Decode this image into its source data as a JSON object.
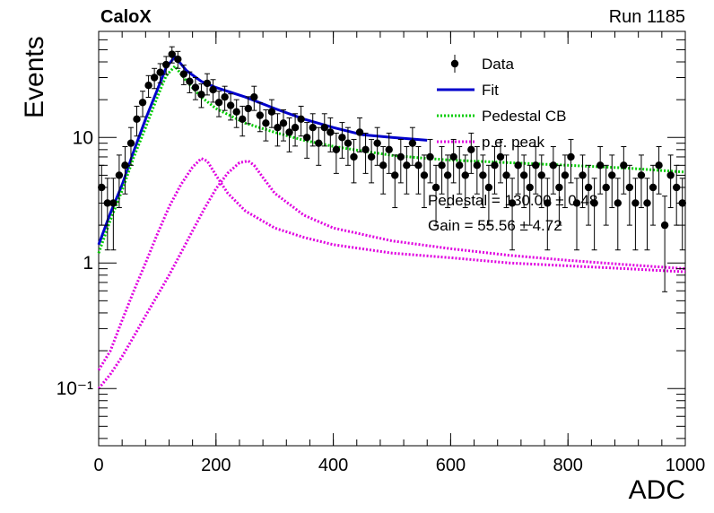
{
  "header": {
    "left_label": "CaloX",
    "right_label": "Run 1185"
  },
  "fit_text": {
    "pedestal": "Pedestal = 130.00 ± 0.48",
    "gain": "Gain = 55.56 ± 4.72"
  },
  "colors": {
    "data": "#000000",
    "fit": "#0000cc",
    "pedestal_cb": "#00cc00",
    "pe_peak": "#e000e0"
  },
  "chart_data": {
    "type": "scatter",
    "title": "",
    "xlabel": "ADC",
    "ylabel": "Events",
    "xlim": [
      0,
      1000
    ],
    "ylim": [
      0.035,
      70
    ],
    "yscale": "log",
    "x_ticks": [
      "0",
      "200",
      "400",
      "600",
      "800",
      "1000"
    ],
    "y_ticks": [
      {
        "value": 0.1,
        "label": "10⁻¹"
      },
      {
        "value": 1,
        "label": "1"
      },
      {
        "value": 10,
        "label": "10"
      }
    ],
    "legend": {
      "position": "top-right",
      "entries": [
        "Data",
        "Fit",
        "Pedestal CB",
        "p.e. peak"
      ]
    },
    "series": [
      {
        "name": "Data",
        "style": "points-with-errors",
        "x": [
          5,
          15,
          25,
          35,
          45,
          55,
          65,
          75,
          85,
          95,
          105,
          115,
          125,
          135,
          145,
          155,
          165,
          175,
          185,
          195,
          205,
          215,
          225,
          235,
          245,
          255,
          265,
          275,
          285,
          295,
          305,
          315,
          325,
          335,
          345,
          355,
          365,
          375,
          385,
          395,
          405,
          415,
          425,
          435,
          445,
          455,
          465,
          475,
          485,
          495,
          505,
          515,
          525,
          535,
          545,
          555,
          565,
          575,
          585,
          595,
          605,
          615,
          625,
          635,
          645,
          655,
          665,
          675,
          685,
          695,
          705,
          715,
          725,
          735,
          745,
          755,
          765,
          775,
          785,
          795,
          805,
          815,
          825,
          835,
          845,
          855,
          865,
          875,
          885,
          895,
          905,
          915,
          925,
          935,
          945,
          955,
          965,
          975,
          985,
          995
        ],
        "y": [
          4,
          3,
          3,
          5,
          6,
          9,
          14,
          19,
          26,
          30,
          33,
          38,
          46,
          42,
          32,
          28,
          25,
          22,
          27,
          24,
          19,
          21,
          18,
          16,
          14,
          17,
          21,
          15,
          13,
          16,
          12,
          13,
          11,
          12,
          14,
          10,
          12,
          9,
          12,
          11,
          8,
          10,
          9,
          7,
          11,
          8,
          7,
          9,
          6,
          8,
          5,
          7,
          6,
          9,
          6,
          5,
          7,
          4,
          6,
          5,
          7,
          6,
          5,
          8,
          6,
          5,
          4,
          6,
          7,
          5,
          3,
          6,
          5,
          4,
          6,
          5,
          3,
          6,
          4,
          5,
          7,
          3,
          5,
          4,
          3,
          6,
          4,
          5,
          3,
          6,
          4,
          3,
          5,
          3,
          4,
          6,
          2,
          5,
          4,
          3
        ],
        "err": [
          2.0,
          1.73,
          1.73,
          2.24,
          2.45,
          3.0,
          3.74,
          4.36,
          5.1,
          5.48,
          5.74,
          6.16,
          6.78,
          6.48,
          5.66,
          5.29,
          5.0,
          4.69,
          5.2,
          4.9,
          4.36,
          4.58,
          4.24,
          4.0,
          3.74,
          4.12,
          4.58,
          3.87,
          3.61,
          4.0,
          3.46,
          3.61,
          3.32,
          3.46,
          3.74,
          3.16,
          3.46,
          3.0,
          3.46,
          3.32,
          2.83,
          3.16,
          3.0,
          2.65,
          3.32,
          2.83,
          2.65,
          3.0,
          2.45,
          2.83,
          2.24,
          2.65,
          2.45,
          3.0,
          2.45,
          2.24,
          2.65,
          2.0,
          2.45,
          2.24,
          2.65,
          2.45,
          2.24,
          2.83,
          2.45,
          2.24,
          2.0,
          2.45,
          2.65,
          2.24,
          1.73,
          2.45,
          2.24,
          2.0,
          2.45,
          2.24,
          1.73,
          2.45,
          2.0,
          2.24,
          2.65,
          1.73,
          2.24,
          2.0,
          1.73,
          2.45,
          2.0,
          2.24,
          1.73,
          2.45,
          2.0,
          1.73,
          2.24,
          1.73,
          2.0,
          2.45,
          1.41,
          2.24,
          2.0,
          1.73
        ]
      },
      {
        "name": "Fit",
        "style": "line",
        "x": [
          0,
          20,
          40,
          60,
          80,
          100,
          115,
          130,
          150,
          175,
          200,
          250,
          300,
          350,
          400,
          450,
          500,
          560
        ],
        "y": [
          1.4,
          2.5,
          4.2,
          7.8,
          14,
          24,
          36,
          44,
          34,
          28,
          25,
          21,
          17,
          14,
          12,
          10.5,
          10,
          9.5
        ]
      },
      {
        "name": "Pedestal CB",
        "style": "dotted",
        "x": [
          0,
          20,
          40,
          60,
          80,
          100,
          115,
          130,
          150,
          175,
          200,
          250,
          300,
          350,
          400,
          450,
          500,
          560,
          600,
          700,
          800,
          900,
          1000
        ],
        "y": [
          1.2,
          2.2,
          3.8,
          7,
          12,
          21,
          31,
          37,
          28,
          21,
          17,
          13,
          11,
          9.5,
          8.5,
          7.8,
          7.2,
          6.8,
          6.6,
          6.3,
          6.0,
          5.7,
          5.3
        ]
      },
      {
        "name": "p.e. peak",
        "style": "dotted",
        "x": [
          0,
          20,
          40,
          60,
          80,
          100,
          120,
          140,
          160,
          175,
          185,
          200,
          220,
          250,
          300,
          350,
          400,
          500,
          600,
          700,
          800,
          900,
          1000
        ],
        "y": [
          0.14,
          0.2,
          0.35,
          0.6,
          1.0,
          1.7,
          2.8,
          4.2,
          5.8,
          6.8,
          6.5,
          5.0,
          3.6,
          2.6,
          1.9,
          1.6,
          1.4,
          1.2,
          1.1,
          1.0,
          0.95,
          0.9,
          0.85
        ]
      },
      {
        "name": "p.e. peak",
        "style": "dotted",
        "x": [
          0,
          20,
          40,
          60,
          80,
          100,
          120,
          140,
          160,
          180,
          200,
          220,
          240,
          255,
          265,
          280,
          300,
          350,
          400,
          500,
          600,
          700,
          800,
          900,
          1000
        ],
        "y": [
          0.1,
          0.13,
          0.18,
          0.26,
          0.38,
          0.55,
          0.8,
          1.2,
          1.8,
          2.7,
          3.9,
          5.2,
          6.3,
          6.5,
          6.0,
          4.8,
          3.6,
          2.4,
          1.9,
          1.5,
          1.3,
          1.15,
          1.05,
          0.97,
          0.9
        ]
      }
    ]
  }
}
